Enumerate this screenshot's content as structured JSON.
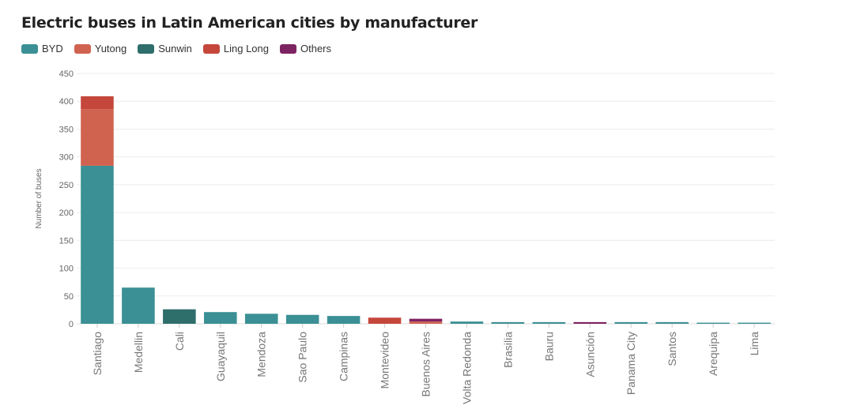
{
  "chart_data": {
    "type": "bar",
    "stacked": true,
    "title": "Electric buses in Latin American cities by manufacturer",
    "ylabel": "Number of buses",
    "xlabel": "",
    "ylim": [
      0,
      450
    ],
    "yticks": [
      0,
      50,
      100,
      150,
      200,
      250,
      300,
      350,
      400,
      450
    ],
    "grid": true,
    "legend_position": "top-left",
    "categories": [
      "Santiago",
      "Medellin",
      "Cali",
      "Guayaquil",
      "Mendoza",
      "Sao Paulo",
      "Campinas",
      "Montevideo",
      "Buenos Aires",
      "Volta Redonda",
      "Brasilia",
      "Bauru",
      "Asunción",
      "Panama City",
      "Santos",
      "Arequipa",
      "Lima"
    ],
    "series": [
      {
        "name": "BYD",
        "color": "#3a9094",
        "values": [
          284,
          65,
          0,
          21,
          18,
          16,
          14,
          0,
          0,
          4,
          3,
          3,
          0,
          3,
          3,
          2,
          2
        ]
      },
      {
        "name": "Yutong",
        "color": "#d0634f",
        "values": [
          102,
          0,
          0,
          0,
          0,
          0,
          0,
          0,
          4,
          0,
          0,
          0,
          0,
          0,
          0,
          0,
          0
        ]
      },
      {
        "name": "Sunwin",
        "color": "#2e6e6b",
        "values": [
          0,
          0,
          26,
          0,
          0,
          0,
          0,
          0,
          0,
          0,
          0,
          0,
          0,
          0,
          0,
          0,
          0
        ]
      },
      {
        "name": "Ling Long",
        "color": "#c5473b",
        "values": [
          23,
          0,
          0,
          0,
          0,
          0,
          0,
          11,
          0,
          0,
          0,
          0,
          0,
          0,
          0,
          0,
          0
        ]
      },
      {
        "name": "Others",
        "color": "#7e2362",
        "values": [
          0,
          0,
          0,
          0,
          0,
          0,
          0,
          0,
          5,
          0,
          0,
          0,
          3,
          0,
          0,
          0,
          0
        ]
      }
    ]
  }
}
